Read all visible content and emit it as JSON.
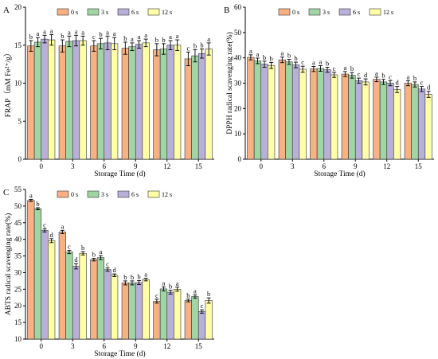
{
  "legend": {
    "colors": [
      "#F7B183",
      "#9FD6A4",
      "#B9B0DA",
      "#FFFFA8"
    ]
  },
  "chart_data": [
    {
      "id": "A",
      "type": "bar",
      "panel_label": "A",
      "xlabel": "Storage Time (d)",
      "ylabel": "FRAP（mM Fe²⁺/g）",
      "categories": [
        "0",
        "3",
        "6",
        "9",
        "12",
        "15"
      ],
      "ylim": [
        0,
        20
      ],
      "yticks": [
        "0",
        "5",
        "10",
        "15",
        "20"
      ],
      "grid": false,
      "legend_position": "top-center",
      "series": [
        {
          "name": "0 s",
          "values": [
            14.9,
            14.9,
            14.9,
            14.6,
            14.4,
            13.2
          ],
          "errors": [
            0.7,
            0.8,
            0.7,
            0.8,
            0.8,
            0.9
          ],
          "labels": [
            "b",
            "b",
            "c",
            "b",
            "b",
            "c"
          ]
        },
        {
          "name": "3 s",
          "values": [
            15.4,
            15.5,
            15.2,
            14.8,
            14.5,
            13.6
          ],
          "errors": [
            0.6,
            0.7,
            0.7,
            0.5,
            0.7,
            0.8
          ],
          "labels": [
            "a",
            "a",
            "b",
            "a",
            "b",
            "b"
          ]
        },
        {
          "name": "6 s",
          "values": [
            15.8,
            15.6,
            15.3,
            15.1,
            15.0,
            13.9
          ],
          "errors": [
            0.5,
            0.7,
            0.9,
            0.5,
            0.6,
            0.6
          ],
          "labels": [
            "a",
            "a",
            "a",
            "a",
            "a",
            "b"
          ]
        },
        {
          "name": "12 s",
          "values": [
            15.7,
            15.6,
            15.2,
            15.3,
            15.0,
            14.5
          ],
          "errors": [
            0.7,
            0.6,
            0.8,
            0.5,
            0.7,
            0.8
          ],
          "labels": [
            "a",
            "a",
            "a",
            "a",
            "a",
            "a"
          ]
        }
      ]
    },
    {
      "id": "B",
      "type": "bar",
      "panel_label": "B",
      "xlabel": "Storage Time (d)",
      "ylabel": "DPPH radical scavenging rate(%)",
      "categories": [
        "0",
        "3",
        "6",
        "9",
        "12",
        "15"
      ],
      "ylim": [
        0,
        60
      ],
      "yticks": [
        "0",
        "10",
        "20",
        "30",
        "40",
        "50",
        "60"
      ],
      "grid": false,
      "legend_position": "top-center",
      "series": [
        {
          "name": "0 s",
          "values": [
            40.2,
            39.2,
            35.6,
            33.6,
            31.5,
            30.0
          ],
          "errors": [
            1.0,
            1.1,
            1.0,
            1.0,
            0.9,
            1.0
          ],
          "labels": [
            "a",
            "a",
            "a",
            "a",
            "a",
            "a"
          ]
        },
        {
          "name": "3 s",
          "values": [
            38.8,
            38.4,
            35.8,
            33.1,
            30.5,
            29.5
          ],
          "errors": [
            1.1,
            1.0,
            1.1,
            1.1,
            1.0,
            1.0
          ],
          "labels": [
            "a",
            "b",
            "a",
            "b",
            "b",
            "b"
          ]
        },
        {
          "name": "6 s",
          "values": [
            37.5,
            37.2,
            35.3,
            31.0,
            30.0,
            27.7
          ],
          "errors": [
            1.2,
            1.1,
            1.0,
            1.0,
            1.0,
            1.0
          ],
          "labels": [
            "b",
            "b",
            "b",
            "c",
            "c",
            "c"
          ]
        },
        {
          "name": "12 s",
          "values": [
            37.0,
            35.5,
            33.3,
            30.5,
            27.5,
            25.6
          ],
          "errors": [
            1.2,
            1.2,
            1.0,
            1.2,
            1.2,
            1.2
          ],
          "labels": [
            "b",
            "c",
            "c",
            "d",
            "d",
            "d"
          ]
        }
      ]
    },
    {
      "id": "C",
      "type": "bar",
      "panel_label": "C",
      "xlabel": "Storage Time (d)",
      "ylabel": "ABTS radical scavenging rate(%)",
      "categories": [
        "0",
        "3",
        "6",
        "9",
        "12",
        "15"
      ],
      "ylim": [
        10,
        55
      ],
      "yticks": [
        "10",
        "15",
        "20",
        "25",
        "30",
        "35",
        "40",
        "45",
        "50",
        "55"
      ],
      "grid": false,
      "legend_position": "top-center",
      "series": [
        {
          "name": "0 s",
          "values": [
            51.7,
            42.2,
            33.9,
            26.9,
            21.4,
            21.6
          ],
          "errors": [
            0.3,
            0.5,
            0.4,
            0.6,
            0.6,
            0.4
          ],
          "labels": [
            "a",
            "a",
            "b",
            "b",
            "c",
            "b"
          ]
        },
        {
          "name": "3 s",
          "values": [
            49.2,
            36.2,
            34.5,
            26.9,
            25.1,
            22.8
          ],
          "errors": [
            0.3,
            0.5,
            0.6,
            0.6,
            0.6,
            0.5
          ],
          "labels": [
            "b",
            "c",
            "a",
            "b",
            "a",
            "a"
          ]
        },
        {
          "name": "6 s",
          "values": [
            42.7,
            31.9,
            30.9,
            27.0,
            24.1,
            18.3
          ],
          "errors": [
            0.5,
            0.8,
            0.5,
            0.6,
            0.6,
            0.5
          ],
          "labels": [
            "c",
            "d",
            "c",
            "b",
            "b",
            "c"
          ]
        },
        {
          "name": "12 s",
          "values": [
            39.6,
            35.8,
            29.2,
            27.9,
            25.0,
            21.6
          ],
          "errors": [
            0.6,
            0.5,
            0.4,
            0.4,
            0.6,
            0.8
          ],
          "labels": [
            "d",
            "b",
            "d",
            "a",
            "a",
            "b"
          ]
        }
      ]
    }
  ]
}
